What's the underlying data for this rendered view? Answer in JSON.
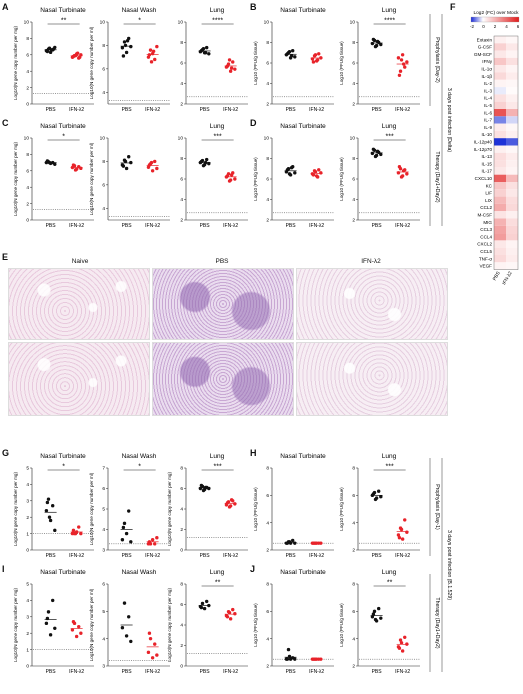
{
  "panels": {
    "A": "A",
    "B": "B",
    "C": "C",
    "D": "D",
    "E": "E",
    "F": "F",
    "G": "G",
    "H": "H",
    "I": "I",
    "J": "J"
  },
  "side_labels": {
    "top_group": "3 days post infection (Delta)",
    "top_proph": "Prophylaxis (Day-2)",
    "top_ther": "Therapy (Day1+Day2)",
    "bot_group": "3 days post infection (B.1.529)",
    "bot_proph": "Prophylaxis (Day-1)",
    "bot_ther": "Therapy (Day1+Day2)"
  },
  "histology": {
    "cols": [
      "Naive",
      "PBS",
      "IFN-λ2"
    ]
  },
  "heatmap": {
    "legend_title": "Log2 (FC) over Mock",
    "scale_ticks": [
      "-2",
      "0",
      "2",
      "4",
      "6"
    ],
    "columns": [
      "PBS",
      "IFN-λ2"
    ],
    "cytokines": [
      "Eotaxin",
      "G-CSF",
      "GM-SCF",
      "IFNγ",
      "IL-1α",
      "IL-1β",
      "IL-2",
      "IL-3",
      "IL-4",
      "IL-5",
      "IL-6",
      "IL-7",
      "IL-9",
      "IL-10",
      "IL-12p40",
      "IL-12p70",
      "IL-13",
      "IL-15",
      "IL-17",
      "CXCL10",
      "KC",
      "LIF",
      "LIX",
      "CCL2",
      "M-CSF",
      "MIG",
      "CCL3",
      "CCL4",
      "CXCL2",
      "CCL5",
      "TNF-α",
      "VEGF"
    ],
    "values_pbs": [
      0.4,
      1.2,
      0.6,
      1.5,
      0.6,
      1.0,
      0.3,
      -0.2,
      0.8,
      1.2,
      4.5,
      -1.2,
      0.5,
      0.8,
      -2.0,
      0.4,
      0.9,
      0.8,
      0.6,
      4.2,
      1.5,
      1.2,
      1.8,
      2.2,
      0.7,
      2.0,
      2.4,
      2.6,
      0.6,
      0.8,
      1.0,
      0.3
    ],
    "values_ifn": [
      0.2,
      0.6,
      0.3,
      0.8,
      0.3,
      0.5,
      0.2,
      0.1,
      0.4,
      0.6,
      2.0,
      -0.4,
      0.2,
      0.4,
      -1.6,
      0.2,
      0.5,
      0.4,
      0.3,
      1.8,
      0.8,
      0.6,
      0.9,
      1.0,
      0.4,
      0.9,
      1.1,
      1.2,
      0.3,
      0.4,
      0.5,
      0.2
    ]
  },
  "chart_data": [
    {
      "id": "A1",
      "type": "scatter",
      "title": "Nasal Turbinate",
      "ylabel": "Log10(N gene copy number per mg)",
      "categories": [
        "PBS",
        "IFN-λ2"
      ],
      "ylim": [
        0,
        10
      ],
      "yticks": [
        0,
        2,
        4,
        6,
        8,
        10
      ],
      "lod": 1.3,
      "sig": "**",
      "series": [
        {
          "values": [
            6.5,
            6.7,
            6.3,
            6.6,
            6.9,
            6.4,
            6.8,
            6.6,
            6.7
          ]
        },
        {
          "values": [
            5.7,
            5.9,
            6.1,
            5.6,
            6.0,
            5.8,
            5.9,
            6.2,
            5.7
          ]
        }
      ]
    },
    {
      "id": "A2",
      "type": "scatter",
      "title": "Nasal Wash",
      "ylabel": "Log10(N gene copy number per ml)",
      "categories": [
        "PBS",
        "IFN-λ2"
      ],
      "ylim": [
        3,
        10
      ],
      "yticks": [
        4,
        6,
        8,
        10
      ],
      "lod": 3.3,
      "sig": "*",
      "series": [
        {
          "values": [
            7.8,
            8.3,
            7.4,
            8.6,
            7.9,
            7.1,
            8.0,
            8.4
          ]
        },
        {
          "values": [
            7.0,
            7.6,
            7.3,
            6.8,
            7.9,
            7.2,
            6.6,
            7.5
          ]
        }
      ]
    },
    {
      "id": "A3",
      "type": "scatter",
      "title": "Lung",
      "ylabel": "",
      "categories": [
        "PBS",
        "IFN-λ2"
      ],
      "ylim": [
        2,
        10
      ],
      "yticks": [
        2,
        4,
        6,
        8,
        10
      ],
      "lod": 2.7,
      "sig": "****",
      "series": [
        {
          "values": [
            7.1,
            7.3,
            7.0,
            7.5,
            6.9,
            7.2,
            7.4,
            7.0
          ]
        },
        {
          "values": [
            5.6,
            5.9,
            5.2,
            6.1,
            5.4,
            5.7,
            6.3,
            5.5
          ]
        }
      ]
    },
    {
      "id": "B1",
      "type": "scatter",
      "title": "Nasal Turbinate",
      "ylabel": "Log10 (PFU/g tissue)",
      "categories": [
        "PBS",
        "IFN-λ2"
      ],
      "ylim": [
        2,
        10
      ],
      "yticks": [
        2,
        4,
        6,
        8,
        10
      ],
      "lod": 2.7,
      "sig": "",
      "series": [
        {
          "values": [
            6.8,
            7.0,
            6.5,
            7.2,
            6.6,
            6.9,
            7.1,
            6.7
          ]
        },
        {
          "values": [
            6.4,
            6.7,
            6.2,
            6.9,
            6.5,
            6.1,
            6.8,
            6.3
          ]
        }
      ]
    },
    {
      "id": "B2",
      "type": "scatter",
      "title": "Lung",
      "ylabel": "Log10 (PFU/g tissue)",
      "categories": [
        "PBS",
        "IFN-λ2"
      ],
      "ylim": [
        2,
        10
      ],
      "yticks": [
        2,
        4,
        6,
        8,
        10
      ],
      "lod": 2.7,
      "sig": "****",
      "series": [
        {
          "values": [
            7.9,
            8.2,
            7.7,
            8.0,
            7.8,
            8.3,
            7.6,
            8.1
          ]
        },
        {
          "values": [
            6.5,
            5.2,
            6.8,
            5.6,
            6.1,
            4.8,
            6.3,
            5.9
          ]
        }
      ]
    },
    {
      "id": "C1",
      "type": "scatter",
      "title": "Nasal Turbinate",
      "ylabel": "Log10(N gene copy number per mg)",
      "categories": [
        "PBS",
        "IFN-λ2"
      ],
      "ylim": [
        0,
        10
      ],
      "yticks": [
        0,
        2,
        4,
        6,
        8,
        10
      ],
      "lod": 1.3,
      "sig": "*",
      "series": [
        {
          "values": [
            7.0,
            7.1,
            6.9,
            7.0,
            6.8,
            7.2,
            7.0
          ]
        },
        {
          "values": [
            6.4,
            6.6,
            6.2,
            6.5,
            6.3,
            6.7,
            6.1
          ]
        }
      ]
    },
    {
      "id": "C2",
      "type": "scatter",
      "title": "",
      "ylabel": "Log10(N gene copy number per ml)",
      "categories": [
        "PBS",
        "IFN-λ2"
      ],
      "ylim": [
        3,
        10
      ],
      "yticks": [
        4,
        6,
        8,
        10
      ],
      "lod": 3.3,
      "sig": "",
      "series": [
        {
          "values": [
            7.7,
            8.1,
            7.4,
            8.4,
            7.9,
            7.6,
            8.0
          ]
        },
        {
          "values": [
            7.5,
            7.8,
            7.2,
            8.0,
            7.4,
            7.7,
            7.9
          ]
        }
      ]
    },
    {
      "id": "C3",
      "type": "scatter",
      "title": "Lung",
      "ylabel": "",
      "categories": [
        "PBS",
        "IFN-λ2"
      ],
      "ylim": [
        2,
        10
      ],
      "yticks": [
        2,
        4,
        6,
        8,
        10
      ],
      "lod": 2.7,
      "sig": "***",
      "series": [
        {
          "values": [
            7.6,
            7.8,
            7.4,
            7.9,
            7.5,
            7.7,
            7.3,
            7.6
          ]
        },
        {
          "values": [
            6.2,
            6.5,
            5.9,
            6.6,
            6.0,
            6.3,
            5.8,
            6.4
          ]
        }
      ]
    },
    {
      "id": "D1",
      "type": "scatter",
      "title": "Nasal Turbinate",
      "ylabel": "Log10 (PFU/g tissue)",
      "categories": [
        "PBS",
        "IFN-λ2"
      ],
      "ylim": [
        2,
        10
      ],
      "yticks": [
        2,
        4,
        6,
        8,
        10
      ],
      "lod": 2.7,
      "sig": "",
      "series": [
        {
          "values": [
            6.7,
            7.0,
            6.4,
            7.2,
            6.6,
            6.9,
            6.5,
            7.1
          ]
        },
        {
          "values": [
            6.5,
            6.8,
            6.3,
            6.9,
            6.6,
            6.4,
            6.7,
            6.2
          ]
        }
      ]
    },
    {
      "id": "D2",
      "type": "scatter",
      "title": "Lung",
      "ylabel": "Log10 (PFU/g tissue)",
      "categories": [
        "PBS",
        "IFN-λ2"
      ],
      "ylim": [
        2,
        10
      ],
      "yticks": [
        2,
        4,
        6,
        8,
        10
      ],
      "lod": 2.7,
      "sig": "***",
      "series": [
        {
          "values": [
            8.5,
            8.8,
            8.3,
            8.6,
            8.4,
            8.9,
            8.2,
            8.7
          ]
        },
        {
          "values": [
            6.6,
            7.0,
            6.3,
            6.9,
            6.5,
            7.2,
            6.2,
            6.8
          ]
        }
      ]
    },
    {
      "id": "G1",
      "type": "scatter",
      "title": "Nasal Turbinate",
      "ylabel": "Log10(N gene copy number per mg)",
      "categories": [
        "PBS",
        "IFN-λ2"
      ],
      "ylim": [
        0,
        5
      ],
      "yticks": [
        0,
        1,
        2,
        3,
        4,
        5
      ],
      "lod": 1.0,
      "sig": "*",
      "series": [
        {
          "values": [
            2.4,
            3.1,
            1.8,
            2.7,
            1.2,
            2.9,
            2.0
          ]
        },
        {
          "values": [
            1.0,
            1.0,
            1.1,
            1.4,
            1.0,
            1.2,
            1.0
          ]
        }
      ]
    },
    {
      "id": "G2",
      "type": "scatter",
      "title": "Nasal Wash",
      "ylabel": "Log10(N gene copy number per ml)",
      "categories": [
        "PBS",
        "IFN-λ2"
      ],
      "ylim": [
        3,
        7
      ],
      "yticks": [
        3,
        4,
        5,
        6,
        7
      ],
      "lod": 3.3,
      "sig": "*",
      "series": [
        {
          "values": [
            3.5,
            4.3,
            3.8,
            4.9,
            3.4,
            4.1
          ]
        },
        {
          "values": [
            3.3,
            3.3,
            3.5,
            3.3,
            3.6,
            3.4
          ]
        }
      ]
    },
    {
      "id": "G3",
      "type": "scatter",
      "title": "Lung",
      "ylabel": "Log10(N gene copy number per mg)",
      "categories": [
        "PBS",
        "IFN-λ2"
      ],
      "ylim": [
        0,
        8
      ],
      "yticks": [
        0,
        2,
        4,
        6,
        8
      ],
      "lod": 1.2,
      "sig": "***",
      "series": [
        {
          "values": [
            6.0,
            6.2,
            5.9,
            6.1,
            6.0,
            6.3,
            5.8,
            6.1
          ]
        },
        {
          "values": [
            4.4,
            4.7,
            4.3,
            4.8,
            4.5,
            4.6,
            4.2,
            4.9
          ]
        }
      ]
    },
    {
      "id": "H1",
      "type": "scatter",
      "title": "Nasal Turbinate",
      "ylabel": "Log10 (PFU/g tissue)",
      "categories": [
        "PBS",
        "IFN-λ2"
      ],
      "ylim": [
        2,
        8
      ],
      "yticks": [
        2,
        4,
        6,
        8
      ],
      "lod": 2.5,
      "sig": "",
      "series": [
        {
          "values": [
            2.5,
            2.6,
            2.5,
            2.7,
            2.5,
            2.5,
            2.6
          ]
        },
        {
          "values": [
            2.5,
            2.5,
            2.5,
            2.5,
            2.5,
            2.5,
            2.5
          ]
        }
      ]
    },
    {
      "id": "H2",
      "type": "scatter",
      "title": "Lung",
      "ylabel": "Log10 (PFU/g tissue)",
      "categories": [
        "PBS",
        "IFN-λ2"
      ],
      "ylim": [
        2,
        8
      ],
      "yticks": [
        2,
        4,
        6,
        8
      ],
      "lod": 2.5,
      "sig": "***",
      "series": [
        {
          "values": [
            6.0,
            6.2,
            5.8,
            6.3,
            5.9,
            6.1,
            5.7
          ]
        },
        {
          "values": [
            3.1,
            3.6,
            2.8,
            4.2,
            3.3,
            2.9,
            3.5
          ]
        }
      ]
    },
    {
      "id": "I1",
      "type": "scatter",
      "title": "Nasal Turbinate",
      "ylabel": "Log10(N gene copy number per mg)",
      "categories": [
        "PBS",
        "IFN-λ2"
      ],
      "ylim": [
        0,
        5
      ],
      "yticks": [
        0,
        1,
        2,
        3,
        4,
        5
      ],
      "lod": 1.0,
      "sig": "",
      "series": [
        {
          "values": [
            2.6,
            3.3,
            1.9,
            4.0,
            2.3,
            2.9
          ]
        },
        {
          "values": [
            2.2,
            2.6,
            1.8,
            2.4,
            2.0,
            2.7
          ]
        }
      ]
    },
    {
      "id": "I2",
      "type": "scatter",
      "title": "Nasal Wash",
      "ylabel": "Log10(N gene copy number per ml)",
      "categories": [
        "PBS",
        "IFN-λ2"
      ],
      "ylim": [
        3,
        6
      ],
      "yticks": [
        3,
        4,
        5,
        6
      ],
      "lod": 3.2,
      "sig": "",
      "series": [
        {
          "values": [
            4.4,
            5.3,
            4.1,
            4.8,
            3.9
          ]
        },
        {
          "values": [
            3.5,
            4.0,
            3.3,
            3.8,
            3.4,
            4.2
          ]
        }
      ]
    },
    {
      "id": "I3",
      "type": "scatter",
      "title": "Lung",
      "ylabel": "Log10(N gene copy number per mg)",
      "categories": [
        "PBS",
        "IFN-λ2"
      ],
      "ylim": [
        0,
        8
      ],
      "yticks": [
        0,
        2,
        4,
        6,
        8
      ],
      "lod": 1.2,
      "sig": "**",
      "series": [
        {
          "values": [
            5.8,
            6.1,
            5.6,
            6.3,
            5.9,
            5.7
          ]
        },
        {
          "values": [
            4.9,
            5.3,
            4.6,
            5.5,
            5.1,
            4.8,
            5.2
          ]
        }
      ]
    },
    {
      "id": "J1",
      "type": "scatter",
      "title": "Nasal Turbinate",
      "ylabel": "Log10 (PFU/g tissue)",
      "categories": [
        "PBS",
        "IFN-λ2"
      ],
      "ylim": [
        2,
        8
      ],
      "yticks": [
        2,
        4,
        6,
        8
      ],
      "lod": 2.5,
      "sig": "",
      "series": [
        {
          "values": [
            2.5,
            3.2,
            2.5,
            2.6,
            2.5,
            2.5,
            2.7
          ]
        },
        {
          "values": [
            2.5,
            2.5,
            2.5,
            2.5,
            2.5,
            2.5,
            2.5
          ]
        }
      ]
    },
    {
      "id": "J2",
      "type": "scatter",
      "title": "Lung",
      "ylabel": "Log10 (PFU/g tissue)",
      "categories": [
        "PBS",
        "IFN-λ2"
      ],
      "ylim": [
        2,
        8
      ],
      "yticks": [
        2,
        4,
        6,
        8
      ],
      "lod": 2.5,
      "sig": "**",
      "series": [
        {
          "values": [
            5.6,
            6.0,
            5.3,
            6.2,
            5.5,
            5.8,
            5.4
          ]
        },
        {
          "values": [
            3.4,
            3.9,
            3.1,
            4.1,
            3.6,
            3.3,
            3.7
          ]
        }
      ]
    }
  ],
  "colors": {
    "pbs": "#111111",
    "ifn": "#e8232a",
    "axis": "#222222"
  }
}
